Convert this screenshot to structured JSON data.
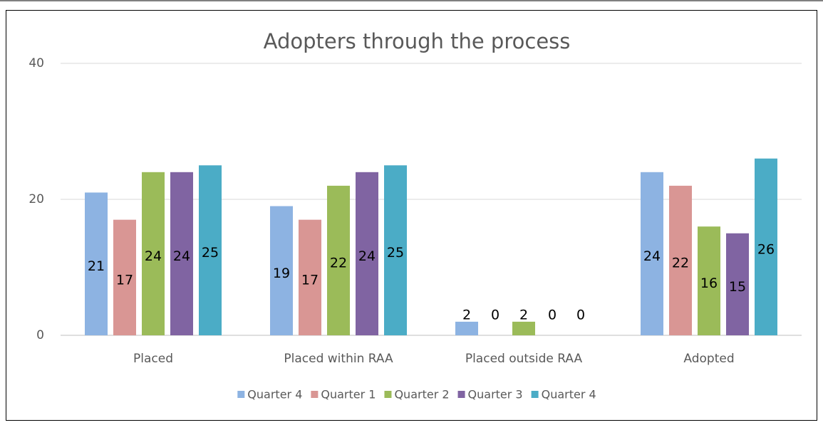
{
  "chart_data": {
    "type": "bar",
    "title": "Adopters through the process",
    "categories": [
      "Placed",
      "Placed within RAA",
      "Placed outside RAA",
      "Adopted"
    ],
    "series": [
      {
        "name": "Quarter 4",
        "color": "#8db3e2",
        "values": [
          21,
          19,
          2,
          24
        ]
      },
      {
        "name": "Quarter 1",
        "color": "#d99694",
        "values": [
          17,
          17,
          0,
          22
        ]
      },
      {
        "name": "Quarter 2",
        "color": "#9bbb59",
        "values": [
          24,
          22,
          2,
          16
        ]
      },
      {
        "name": "Quarter 3",
        "color": "#8064a2",
        "values": [
          24,
          24,
          0,
          15
        ]
      },
      {
        "name": "Quarter 4",
        "color": "#4bacc6",
        "values": [
          25,
          25,
          0,
          26
        ]
      }
    ],
    "ylim": [
      0,
      40
    ],
    "yticks": [
      0,
      20,
      40
    ],
    "grid": true,
    "legend": "bottom"
  }
}
